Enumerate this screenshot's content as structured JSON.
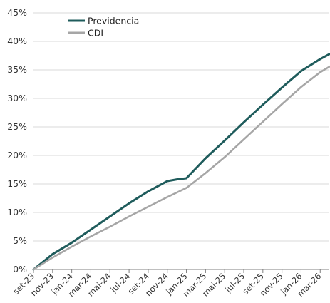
{
  "chart_data": {
    "type": "line",
    "title": "",
    "xlabel": "",
    "ylabel": "",
    "x_start": "set-23",
    "x_end": "mar-26",
    "x_tick_labels": [
      "set-23",
      "nov-23",
      "jan-24",
      "mar-24",
      "mai-24",
      "jul-24",
      "set-24",
      "nov-24",
      "jan-25",
      "mar-25",
      "mai-25",
      "jul-25",
      "set-25",
      "nov-25",
      "jan-26",
      "mar-26"
    ],
    "y_tick_labels": [
      "0%",
      "5%",
      "10%",
      "15%",
      "20%",
      "25%",
      "30%",
      "35%",
      "40%",
      "45%"
    ],
    "ylim": [
      0,
      45
    ],
    "grid": "horizontal",
    "legend_position": "top-left",
    "x": [
      "set-23",
      "nov-23",
      "jan-24",
      "mar-24",
      "mai-24",
      "jul-24",
      "set-24",
      "nov-24",
      "dez-24",
      "jan-25",
      "mar-25",
      "mai-25",
      "jul-25",
      "set-25",
      "nov-25",
      "jan-26",
      "mar-26",
      "abr-26"
    ],
    "series": [
      {
        "name": "Previdencia",
        "color": "#1f5c5c",
        "values": [
          0.0,
          2.7,
          4.7,
          7.0,
          9.3,
          11.6,
          13.7,
          15.5,
          15.8,
          16.0,
          19.5,
          22.6,
          25.8,
          28.9,
          31.9,
          34.8,
          36.9,
          37.8
        ]
      },
      {
        "name": "CDI",
        "color": "#a6a6a6",
        "values": [
          0.0,
          2.1,
          4.0,
          5.8,
          7.5,
          9.3,
          11.0,
          12.7,
          13.5,
          14.3,
          16.9,
          19.7,
          22.8,
          25.9,
          29.0,
          32.0,
          34.6,
          35.6
        ]
      }
    ]
  }
}
